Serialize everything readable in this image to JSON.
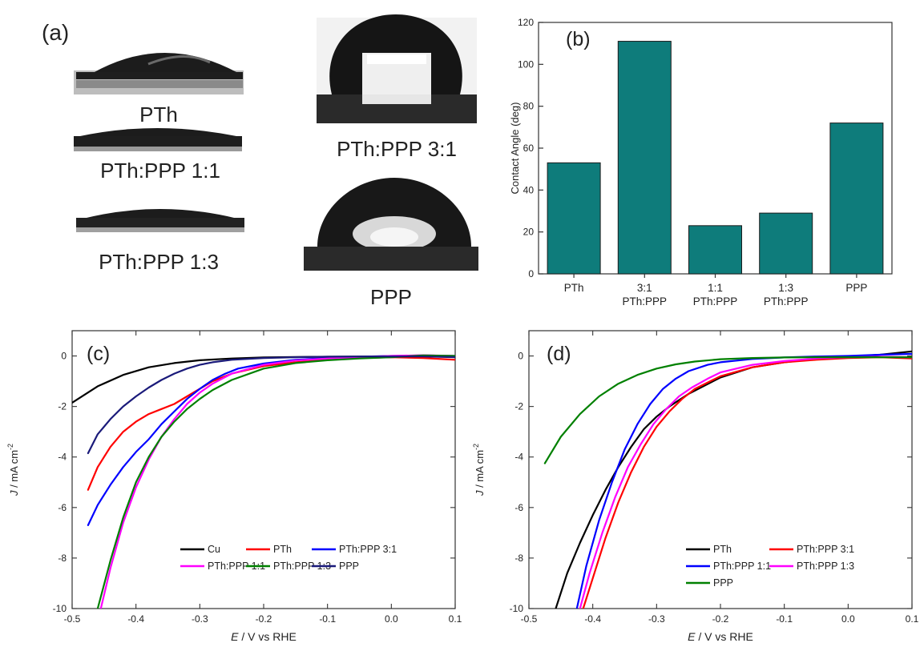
{
  "panel_a": {
    "label": "(a)",
    "samples": [
      {
        "name": "PTh",
        "contact_angle": 53
      },
      {
        "name": "PTh:PPP 1:1",
        "contact_angle": 23
      },
      {
        "name": "PTh:PPP 1:3",
        "contact_angle": 29
      },
      {
        "name": "PTh:PPP 3:1",
        "contact_angle": 111
      },
      {
        "name": "PPP",
        "contact_angle": 72
      }
    ]
  },
  "chart_data": [
    {
      "id": "b",
      "type": "bar",
      "panel_label": "(b)",
      "categories": [
        "PTh",
        "3:1\nPTh:PPP",
        "1:1\nPTh:PPP",
        "1:3\nPTh:PPP",
        "PPP"
      ],
      "values": [
        53,
        111,
        23,
        29,
        72
      ],
      "ylabel": "Contact Angle (deg)",
      "xlabel": "",
      "ylim": [
        0,
        120
      ],
      "yticks": [
        0,
        20,
        40,
        60,
        80,
        100,
        120
      ],
      "bar_color": "#0e7c7b"
    },
    {
      "id": "c",
      "type": "line",
      "panel_label": "(c)",
      "xlabel": "E / V vs RHE",
      "ylabel": "J / mA cm-2",
      "xlim": [
        -0.5,
        0.1
      ],
      "ylim": [
        -10,
        1
      ],
      "xticks": [
        -0.5,
        -0.4,
        -0.3,
        -0.2,
        -0.1,
        0.0,
        0.1
      ],
      "yticks": [
        0,
        -2,
        -4,
        -6,
        -8,
        -10
      ],
      "legend": "lower-center",
      "series": [
        {
          "name": "Cu",
          "color": "#000000",
          "x": [
            -0.5,
            -0.46,
            -0.42,
            -0.38,
            -0.34,
            -0.3,
            -0.25,
            -0.2,
            -0.15,
            -0.1,
            0.0,
            0.1
          ],
          "y": [
            -1.85,
            -1.2,
            -0.75,
            -0.45,
            -0.28,
            -0.17,
            -0.1,
            -0.06,
            -0.04,
            -0.03,
            -0.02,
            -0.02
          ]
        },
        {
          "name": "PTh",
          "color": "#ff0000",
          "x": [
            -0.475,
            -0.46,
            -0.44,
            -0.42,
            -0.4,
            -0.38,
            -0.36,
            -0.34,
            -0.32,
            -0.3,
            -0.28,
            -0.25,
            -0.2,
            -0.15,
            -0.1,
            -0.05,
            0.0,
            0.05,
            0.1
          ],
          "y": [
            -5.3,
            -4.4,
            -3.6,
            -3.0,
            -2.6,
            -2.3,
            -2.1,
            -1.9,
            -1.6,
            -1.3,
            -1.0,
            -0.7,
            -0.4,
            -0.25,
            -0.15,
            -0.08,
            -0.05,
            -0.08,
            -0.15
          ]
        },
        {
          "name": "PTh:PPP 3:1",
          "color": "#0000ff",
          "x": [
            -0.475,
            -0.46,
            -0.44,
            -0.42,
            -0.4,
            -0.38,
            -0.36,
            -0.34,
            -0.32,
            -0.3,
            -0.28,
            -0.26,
            -0.24,
            -0.2,
            -0.15,
            -0.1,
            -0.05,
            0.0,
            0.05,
            0.1
          ],
          "y": [
            -6.7,
            -5.9,
            -5.1,
            -4.4,
            -3.8,
            -3.3,
            -2.7,
            -2.2,
            -1.7,
            -1.3,
            -0.95,
            -0.7,
            -0.5,
            -0.3,
            -0.15,
            -0.08,
            -0.03,
            0.0,
            0.02,
            0.0
          ]
        },
        {
          "name": "PTh:PPP 1:1",
          "color": "#ff00ff",
          "x": [
            -0.455,
            -0.44,
            -0.42,
            -0.4,
            -0.38,
            -0.36,
            -0.34,
            -0.32,
            -0.3,
            -0.28,
            -0.25,
            -0.2,
            -0.15,
            -0.1,
            -0.05,
            0.0,
            0.05,
            0.1
          ],
          "y": [
            -10.0,
            -8.4,
            -6.6,
            -5.2,
            -4.1,
            -3.2,
            -2.5,
            -1.9,
            -1.45,
            -1.1,
            -0.7,
            -0.35,
            -0.18,
            -0.1,
            -0.05,
            0.0,
            0.03,
            0.0
          ]
        },
        {
          "name": "PTh:PPP 1:3",
          "color": "#008000",
          "x": [
            -0.46,
            -0.44,
            -0.42,
            -0.4,
            -0.38,
            -0.36,
            -0.34,
            -0.32,
            -0.3,
            -0.28,
            -0.25,
            -0.2,
            -0.15,
            -0.1,
            -0.05,
            0.0,
            0.05,
            0.1
          ],
          "y": [
            -10.0,
            -8.1,
            -6.4,
            -5.0,
            -4.0,
            -3.2,
            -2.6,
            -2.1,
            -1.7,
            -1.35,
            -0.95,
            -0.5,
            -0.28,
            -0.17,
            -0.1,
            -0.05,
            0.02,
            0.0
          ]
        },
        {
          "name": "PPP",
          "color": "#1a1a7a",
          "x": [
            -0.475,
            -0.46,
            -0.44,
            -0.42,
            -0.4,
            -0.38,
            -0.36,
            -0.34,
            -0.32,
            -0.3,
            -0.28,
            -0.25,
            -0.2,
            -0.15,
            -0.1,
            -0.05,
            0.0,
            0.05,
            0.1
          ],
          "y": [
            -3.85,
            -3.1,
            -2.5,
            -2.0,
            -1.6,
            -1.25,
            -0.95,
            -0.7,
            -0.5,
            -0.35,
            -0.25,
            -0.15,
            -0.08,
            -0.05,
            -0.03,
            -0.02,
            -0.02,
            -0.02,
            -0.05
          ]
        }
      ]
    },
    {
      "id": "d",
      "type": "line",
      "panel_label": "(d)",
      "xlabel": "E / V vs RHE",
      "ylabel": "J / mA cm-2",
      "xlim": [
        -0.5,
        0.1
      ],
      "ylim": [
        -10,
        1
      ],
      "xticks": [
        -0.5,
        -0.4,
        -0.3,
        -0.2,
        -0.1,
        0.0,
        0.1
      ],
      "yticks": [
        0,
        -2,
        -4,
        -6,
        -8,
        -10
      ],
      "legend": "lower-right",
      "series": [
        {
          "name": "PTh",
          "color": "#000000",
          "x": [
            -0.458,
            -0.44,
            -0.42,
            -0.4,
            -0.38,
            -0.36,
            -0.34,
            -0.32,
            -0.3,
            -0.28,
            -0.25,
            -0.2,
            -0.15,
            -0.1,
            -0.05,
            0.0,
            0.05,
            0.1
          ],
          "y": [
            -10.0,
            -8.6,
            -7.4,
            -6.3,
            -5.3,
            -4.4,
            -3.6,
            -2.9,
            -2.4,
            -2.0,
            -1.5,
            -0.85,
            -0.45,
            -0.25,
            -0.12,
            -0.03,
            0.05,
            0.18
          ]
        },
        {
          "name": "PTh:PPP 3:1",
          "color": "#ff0000",
          "x": [
            -0.415,
            -0.4,
            -0.38,
            -0.36,
            -0.34,
            -0.32,
            -0.3,
            -0.28,
            -0.26,
            -0.24,
            -0.2,
            -0.15,
            -0.1,
            -0.05,
            0.0,
            0.05,
            0.1
          ],
          "y": [
            -10.0,
            -8.8,
            -7.2,
            -5.8,
            -4.6,
            -3.6,
            -2.8,
            -2.2,
            -1.7,
            -1.3,
            -0.8,
            -0.45,
            -0.25,
            -0.15,
            -0.08,
            -0.05,
            -0.1
          ]
        },
        {
          "name": "PTh:PPP 1:1",
          "color": "#0000ff",
          "x": [
            -0.425,
            -0.41,
            -0.39,
            -0.37,
            -0.35,
            -0.33,
            -0.31,
            -0.29,
            -0.27,
            -0.25,
            -0.22,
            -0.2,
            -0.15,
            -0.1,
            -0.05,
            0.0,
            0.05,
            0.1
          ],
          "y": [
            -10.0,
            -8.3,
            -6.5,
            -5.0,
            -3.7,
            -2.7,
            -1.9,
            -1.3,
            -0.9,
            -0.6,
            -0.35,
            -0.25,
            -0.12,
            -0.06,
            -0.02,
            0.0,
            0.05,
            0.08
          ]
        },
        {
          "name": "PTh:PPP 1:3",
          "color": "#ff00ff",
          "x": [
            -0.42,
            -0.405,
            -0.385,
            -0.365,
            -0.345,
            -0.325,
            -0.305,
            -0.285,
            -0.265,
            -0.245,
            -0.22,
            -0.2,
            -0.15,
            -0.1,
            -0.05,
            0.0,
            0.05,
            0.1
          ],
          "y": [
            -10.0,
            -8.6,
            -7.0,
            -5.6,
            -4.4,
            -3.5,
            -2.7,
            -2.1,
            -1.6,
            -1.25,
            -0.9,
            -0.65,
            -0.35,
            -0.2,
            -0.1,
            -0.05,
            -0.03,
            -0.05
          ]
        },
        {
          "name": "PPP",
          "color": "#008000",
          "x": [
            -0.475,
            -0.45,
            -0.42,
            -0.39,
            -0.36,
            -0.33,
            -0.3,
            -0.27,
            -0.24,
            -0.2,
            -0.15,
            -0.1,
            -0.05,
            0.0,
            0.05,
            0.1
          ],
          "y": [
            -4.25,
            -3.2,
            -2.3,
            -1.6,
            -1.1,
            -0.75,
            -0.5,
            -0.33,
            -0.22,
            -0.13,
            -0.08,
            -0.06,
            -0.05,
            -0.05,
            -0.05,
            -0.05
          ]
        }
      ]
    }
  ]
}
